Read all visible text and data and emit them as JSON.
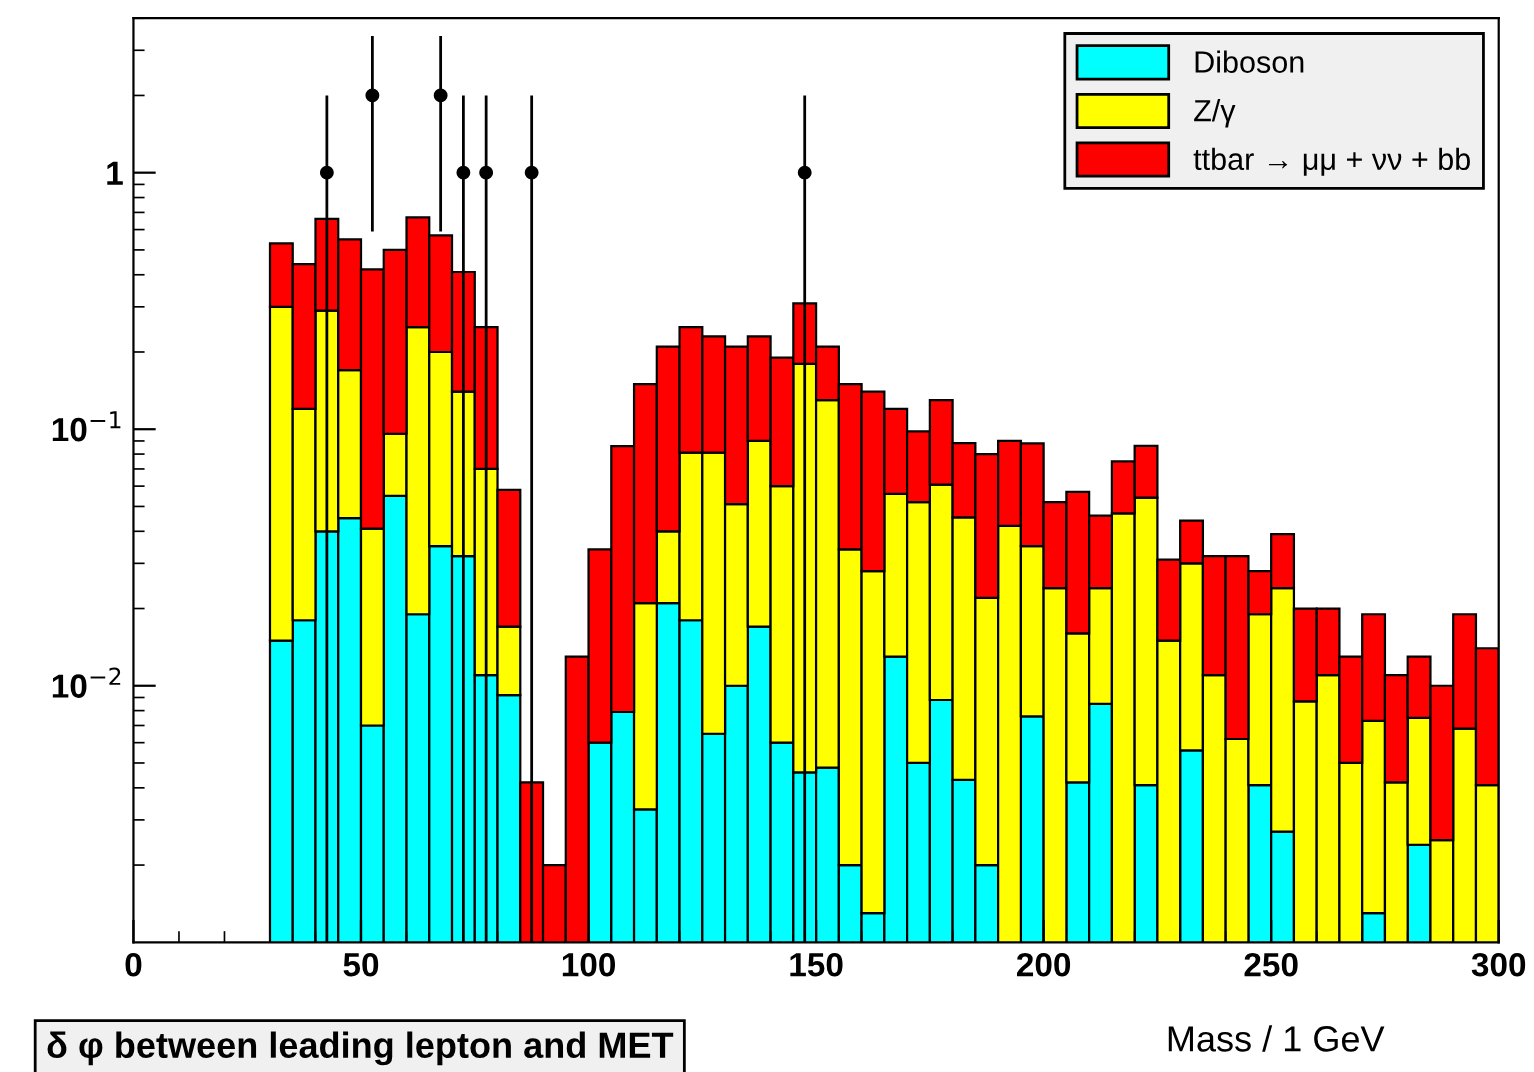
{
  "chart_data": {
    "type": "bar",
    "title": "δ φ between leading lepton and MET",
    "xlabel": "Mass / 1 GeV",
    "x": [
      32.5,
      37.5,
      42.5,
      47.5,
      52.5,
      57.5,
      62.5,
      67.5,
      72.5,
      77.5,
      82.5,
      87.5,
      92.5,
      97.5,
      102.5,
      107.5,
      112.5,
      117.5,
      122.5,
      127.5,
      132.5,
      137.5,
      142.5,
      147.5,
      152.5,
      157.5,
      162.5,
      167.5,
      172.5,
      177.5,
      182.5,
      187.5,
      192.5,
      197.5,
      202.5,
      207.5,
      212.5,
      217.5,
      222.5,
      227.5,
      232.5,
      237.5,
      242.5,
      247.5,
      252.5,
      257.5,
      262.5,
      267.5,
      272.5,
      277.5,
      282.5,
      287.5,
      292.5,
      297.5
    ],
    "stacked": true,
    "series": [
      {
        "name": "Diboson",
        "color": "#00ffff",
        "values": [
          0.015,
          0.018,
          0.04,
          0.045,
          0.007,
          0.055,
          0.019,
          0.035,
          0.032,
          0.011,
          0.0092,
          null,
          null,
          null,
          0.006,
          0.0079,
          0.0033,
          0.021,
          0.018,
          0.0065,
          0.01,
          0.017,
          0.006,
          0.0046,
          0.0048,
          0.002,
          0.0013,
          0.013,
          0.005,
          0.0088,
          0.0043,
          0.002,
          null,
          0.0076,
          null,
          0.0042,
          0.0085,
          null,
          0.0041,
          null,
          0.0056,
          null,
          null,
          0.0041,
          0.0027,
          null,
          null,
          null,
          0.0013,
          null,
          0.0024,
          null,
          null,
          null
        ]
      },
      {
        "name": "Z/γ",
        "color": "#ffff00",
        "values": [
          0.285,
          0.102,
          0.25,
          0.125,
          0.034,
          0.041,
          0.231,
          0.165,
          0.108,
          0.059,
          0.0078,
          null,
          null,
          null,
          null,
          null,
          0.0177,
          0.019,
          0.063,
          0.0745,
          0.041,
          0.073,
          0.054,
          0.175,
          0.125,
          0.032,
          0.0267,
          0.043,
          0.047,
          0.052,
          0.041,
          0.02,
          0.042,
          0.0274,
          0.024,
          0.0118,
          0.0155,
          0.047,
          0.05,
          0.015,
          0.0244,
          0.011,
          0.0062,
          0.0149,
          0.0213,
          0.0087,
          0.011,
          0.005,
          0.006,
          0.0042,
          0.0051,
          0.0025,
          0.0068,
          0.0041
        ]
      },
      {
        "name": "ttbar → μμ + νν + bb",
        "color": "#ff0000",
        "values": [
          0.23,
          0.32,
          0.37,
          0.38,
          0.379,
          0.404,
          0.42,
          0.37,
          0.27,
          0.18,
          0.041,
          0.0042,
          0.002,
          0.013,
          0.028,
          0.078,
          0.129,
          0.17,
          0.169,
          0.149,
          0.159,
          0.14,
          0.13,
          0.13,
          0.08,
          0.116,
          0.112,
          0.064,
          0.046,
          0.069,
          0.043,
          0.058,
          0.048,
          0.053,
          0.028,
          0.041,
          0.022,
          0.028,
          0.032,
          0.016,
          0.014,
          0.021,
          0.0258,
          0.009,
          0.015,
          0.0113,
          0.009,
          0.008,
          0.0117,
          0.0068,
          0.0055,
          0.0075,
          0.0122,
          0.0099
        ]
      },
      {
        "type": "scatter",
        "color": "#000000",
        "x": [
          42.5,
          52.5,
          67.5,
          72.5,
          77.5,
          87.5,
          147.5
        ],
        "values": [
          1,
          2,
          2,
          1,
          1,
          1,
          1
        ],
        "errors": [
          [
            0.001,
            2
          ],
          [
            0.59,
            3.41
          ],
          [
            0.59,
            3.41
          ],
          [
            0.001,
            2
          ],
          [
            0.001,
            2
          ],
          [
            0.001,
            2
          ],
          [
            0.001,
            2
          ]
        ]
      }
    ],
    "xlim": [
      0,
      300
    ],
    "xticks": [
      0,
      50,
      100,
      150,
      200,
      250,
      300
    ],
    "ylim": [
      0.001,
      4
    ],
    "yticks": [
      {
        "value": 0.01,
        "label": "10$^{−2}$"
      },
      {
        "value": 0.1,
        "label": "10$^{−1}$"
      },
      1
    ],
    "log": "y",
    "legend": "top right",
    "grid": false,
    "marker": "circle"
  }
}
